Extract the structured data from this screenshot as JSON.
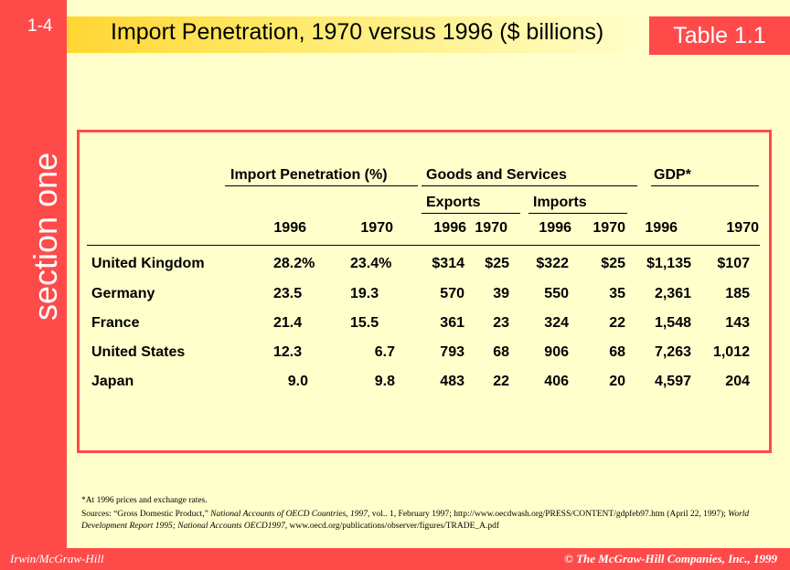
{
  "slide": {
    "number": "1-4",
    "section": "section one",
    "title": "Import Penetration, 1970 versus 1996 ($ billions)",
    "badge": "Table 1.1"
  },
  "table": {
    "group_headers": {
      "import_penetration": "Import Penetration (%)",
      "goods_services": "Goods and Services",
      "gdp": "GDP*"
    },
    "sub_headers": {
      "exports": "Exports",
      "imports": "Imports"
    },
    "years": [
      "1996",
      "1970",
      "1996",
      "1970",
      "1996",
      "1970",
      "1996",
      "1970"
    ],
    "rows": [
      {
        "country": "United Kingdom",
        "cells": [
          "28.2%",
          "23.4%",
          "$314",
          "$25",
          "$322",
          "$25",
          "$1,135",
          "$107"
        ]
      },
      {
        "country": "Germany",
        "cells": [
          "23.5",
          "19.3",
          "570",
          "39",
          "550",
          "35",
          "2,361",
          "185"
        ]
      },
      {
        "country": "France",
        "cells": [
          "21.4",
          "15.5",
          "361",
          "23",
          "324",
          "22",
          "1,548",
          "143"
        ]
      },
      {
        "country": "United States",
        "cells": [
          "12.3",
          "6.7",
          "793",
          "68",
          "906",
          "68",
          "7,263",
          "1,012"
        ]
      },
      {
        "country": "Japan",
        "cells": [
          "9.0",
          "9.8",
          "483",
          "22",
          "406",
          "20",
          "4,597",
          "204"
        ]
      }
    ]
  },
  "footnote": "*At 1996 prices and exchange rates.",
  "sources": {
    "prefix": "Sources: “Gross Domestic Product,” ",
    "pub1": "National Accounts of OECD Countries, 1997",
    "mid1": ", vol.. 1, February 1997; http://www.oecdwash.org/PRESS/CONTENT/gdpfeb97.htm (April 22, 1997); ",
    "pub2": "World Development Report 1995; National Accounts OECD1997",
    "suffix": ", www.oecd.org/publications/observer/figures/TRADE_A.pdf"
  },
  "footer": {
    "left": "Irwin/McGraw-Hill",
    "right": "© The McGraw-Hill Companies, Inc., 1999"
  }
}
